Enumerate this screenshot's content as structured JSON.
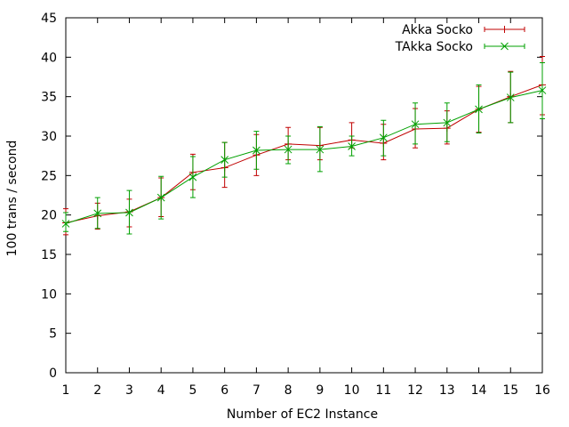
{
  "chart_data": {
    "type": "line",
    "xlabel": "Number of EC2 Instance",
    "ylabel": "100 trans / second",
    "x": [
      1,
      2,
      3,
      4,
      5,
      6,
      7,
      8,
      9,
      10,
      11,
      12,
      13,
      14,
      15,
      16
    ],
    "xlim": [
      1,
      16
    ],
    "ylim": [
      0,
      45
    ],
    "x_ticks": [
      1,
      2,
      3,
      4,
      5,
      6,
      7,
      8,
      9,
      10,
      11,
      12,
      13,
      14,
      15,
      16
    ],
    "y_ticks": [
      0,
      5,
      10,
      15,
      20,
      25,
      30,
      35,
      40,
      45
    ],
    "grid": false,
    "legend_position": "top-right",
    "series": [
      {
        "name": "Akka Socko",
        "color": "#c00000",
        "marker": "plus",
        "values": [
          19.0,
          19.9,
          20.4,
          22.2,
          25.4,
          26.0,
          27.6,
          29.0,
          28.8,
          29.5,
          29.1,
          30.9,
          31.0,
          33.4,
          35.0,
          36.5
        ],
        "error_low": [
          17.5,
          18.2,
          18.5,
          19.8,
          23.2,
          23.5,
          25.0,
          27.0,
          27.0,
          28.5,
          27.0,
          28.5,
          29.0,
          30.5,
          31.7,
          32.7
        ],
        "error_high": [
          20.8,
          21.5,
          22.0,
          24.7,
          27.7,
          29.2,
          30.2,
          31.1,
          31.1,
          31.7,
          31.5,
          33.5,
          33.2,
          36.3,
          38.2,
          40.1
        ]
      },
      {
        "name": "TAkka Socko",
        "color": "#00a000",
        "marker": "x",
        "values": [
          18.9,
          20.2,
          20.3,
          22.2,
          24.8,
          27.0,
          28.2,
          28.3,
          28.3,
          28.7,
          29.8,
          31.5,
          31.7,
          33.4,
          34.9,
          35.8
        ],
        "error_low": [
          17.9,
          18.3,
          17.6,
          19.5,
          22.2,
          24.8,
          25.8,
          26.5,
          25.5,
          27.5,
          27.5,
          29.0,
          29.3,
          30.4,
          31.7,
          32.2
        ],
        "error_high": [
          20.3,
          22.2,
          23.1,
          24.9,
          27.4,
          29.2,
          30.6,
          30.0,
          31.2,
          30.0,
          32.0,
          34.2,
          34.2,
          36.5,
          38.1,
          39.3
        ]
      }
    ]
  }
}
